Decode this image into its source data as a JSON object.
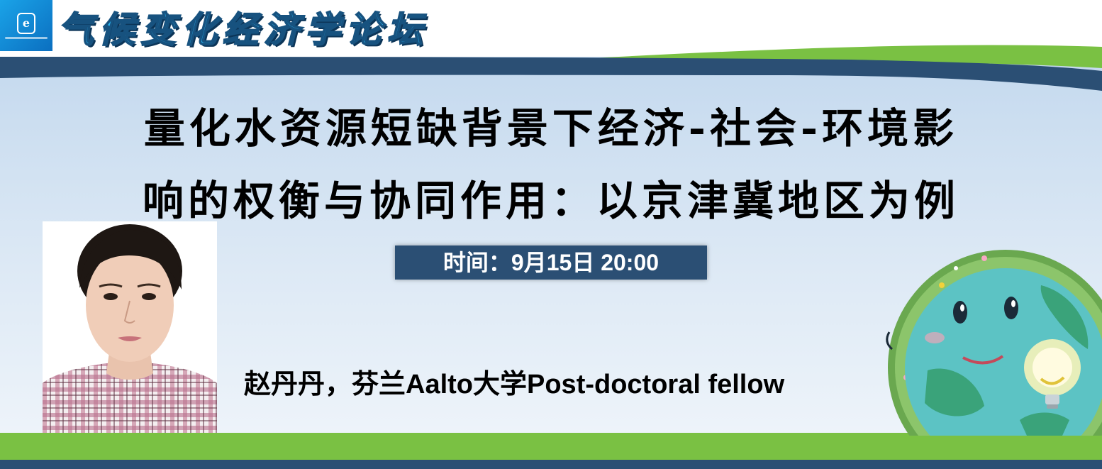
{
  "banner": {
    "forum_title": "气候变化经济学论坛",
    "main_title_line1": "量化水资源短缺背景下经济-社会-环境影",
    "main_title_line2": "响的权衡与协同作用：以京津冀地区为例",
    "time_text": "时间：9月15日 20:00",
    "speaker_text": "赵丹丹，芬兰Aalto大学Post-doctoral fellow"
  },
  "logo": {
    "icon": "shield-e-logo"
  },
  "colors": {
    "navy": "#2b4f74",
    "green": "#7ac143",
    "sky_top": "#c6dbee",
    "sky_bottom": "#ecf3fa",
    "forum_title": "#27b3ef"
  },
  "icons": {
    "earth": "smiling-earth-with-lightbulb-illustration",
    "photo": "speaker-portrait"
  }
}
